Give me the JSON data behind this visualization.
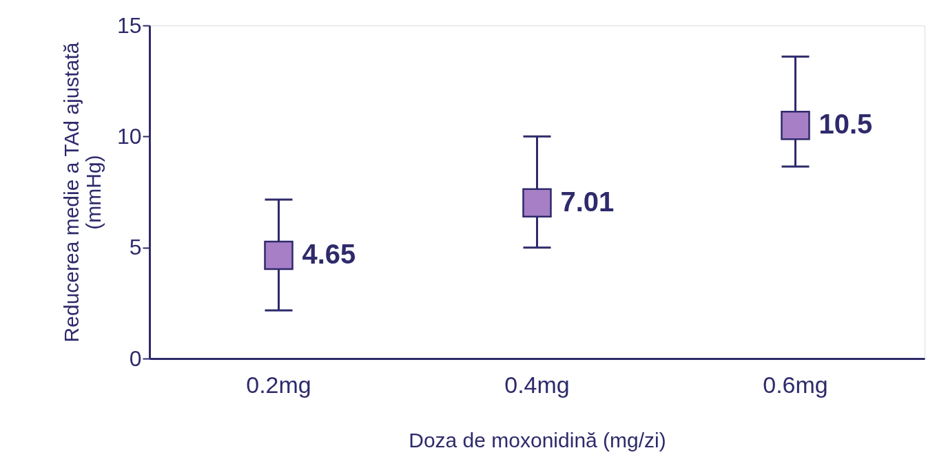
{
  "chart_data": {
    "type": "scatter",
    "xlabel": "Doza de moxonidină (mg/zi)",
    "ylabel": "Reducerea medie a TAd ajustată (mmHg)",
    "categories": [
      "0.2mg",
      "0.4mg",
      "0.6mg"
    ],
    "series": [
      {
        "color": "#a77fc6",
        "values": [
          4.65,
          7.01,
          10.5
        ],
        "errors": [
          [
            2.17,
            7.16
          ],
          [
            5.0,
            10.0
          ],
          [
            8.65,
            13.6
          ]
        ]
      }
    ],
    "ylim": [
      0,
      15
    ],
    "yticks": [
      0,
      5,
      10,
      15
    ],
    "marker": "square",
    "data_labels": true,
    "grid": false
  }
}
